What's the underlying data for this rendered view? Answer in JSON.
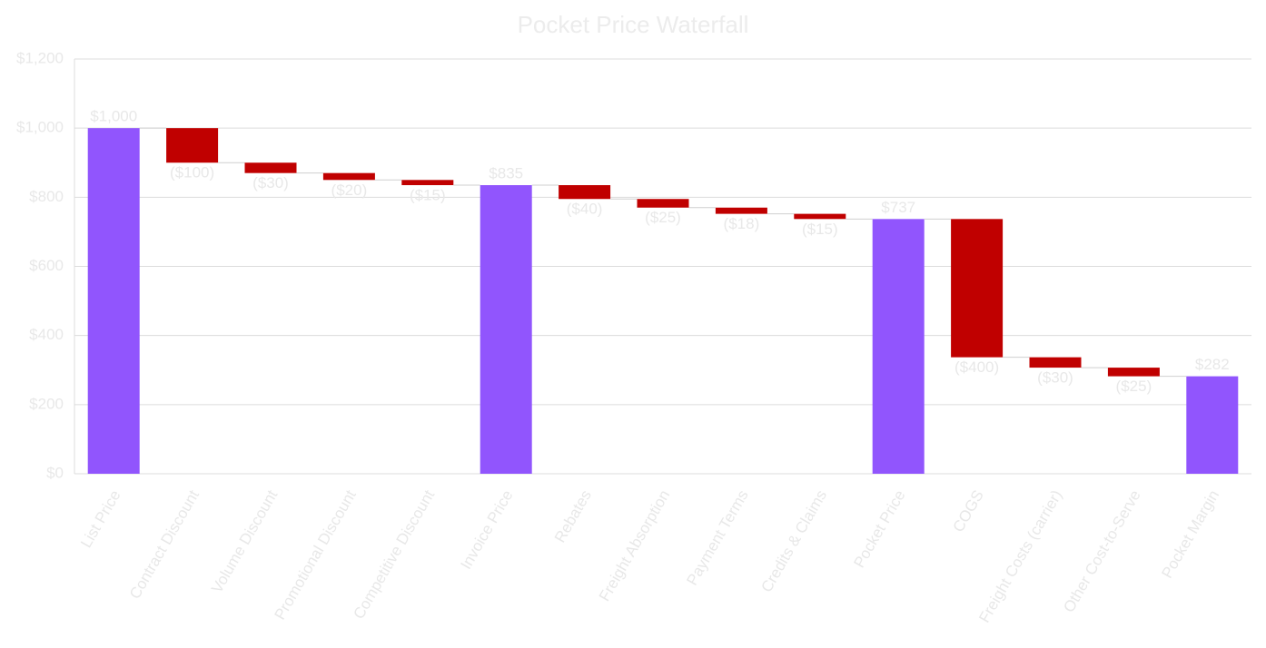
{
  "chart_data": {
    "type": "waterfall",
    "title": "Pocket Price Waterfall",
    "categories": [
      "List Price",
      "Contract Discount",
      "Volume Discount",
      "Promotional Discount",
      "Competitive Discount",
      "Invoice Price",
      "Rebates",
      "Freight Absorption",
      "Payment Terms",
      "Credits & Claims",
      "Pocket Price",
      "COGS",
      "Freight Costs (carrier)",
      "Other Cost-to-Serve",
      "Pocket Margin"
    ],
    "values": [
      1000,
      -100,
      -30,
      -20,
      -15,
      835,
      -40,
      -25,
      -18,
      -15,
      737,
      -400,
      -30,
      -25,
      282
    ],
    "value_labels": [
      "$1,000",
      "($100)",
      "($30)",
      "($20)",
      "($15)",
      "$835",
      "($40)",
      "($25)",
      "($18)",
      "($15)",
      "$737",
      "($400)",
      "($30)",
      "($25)",
      "$282"
    ],
    "total_color": "#9155fd",
    "decrease_color": "#c00000",
    "ylim": [
      0,
      1200
    ],
    "yticks": [
      {
        "value": 0,
        "label": "$0"
      },
      {
        "value": 200,
        "label": "$200"
      },
      {
        "value": 400,
        "label": "$400"
      },
      {
        "value": 600,
        "label": "$600"
      },
      {
        "value": 800,
        "label": "$800"
      },
      {
        "value": 1000,
        "label": "$1,000"
      },
      {
        "value": 1200,
        "label": "$1,200"
      }
    ],
    "grid": true
  }
}
